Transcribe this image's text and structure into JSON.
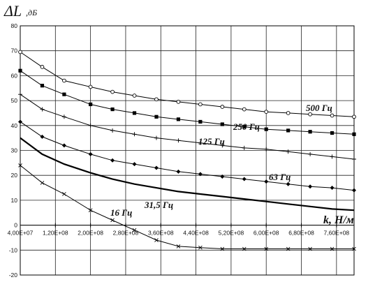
{
  "chart_data": {
    "type": "line",
    "title_main": "ΔL",
    "title_sub": ",дБ",
    "xlabel": "k, Н/м",
    "xlim": [
      40000000,
      800000000
    ],
    "ylim": [
      -20,
      80
    ],
    "x_ticks": [
      40000000,
      120000000,
      200000000,
      280000000,
      360000000,
      440000000,
      520000000,
      600000000,
      680000000,
      760000000
    ],
    "x_tick_labels": [
      "4,00E+07",
      "1,20E+08",
      "2,00E+08",
      "2,80E+08",
      "3,60E+08",
      "4,40E+08",
      "5,20E+08",
      "6,00E+08",
      "6,80E+08",
      "7,60E+08"
    ],
    "y_ticks": [
      -20,
      -10,
      0,
      10,
      20,
      30,
      40,
      50,
      60,
      70,
      80
    ],
    "y_tick_labels": [
      "-20",
      "-10",
      "0",
      "10",
      "20",
      "30",
      "40",
      "50",
      "60",
      "70",
      "80"
    ],
    "grid": true,
    "series": [
      {
        "name": "500 Гц",
        "marker": "circle-open",
        "x": [
          40000000,
          90000000,
          140000000,
          200000000,
          250000000,
          300000000,
          350000000,
          400000000,
          450000000,
          500000000,
          550000000,
          600000000,
          650000000,
          700000000,
          750000000,
          800000000
        ],
        "y": [
          69.5,
          63.5,
          58,
          55.5,
          53.5,
          52,
          50.5,
          49.5,
          48.5,
          47.5,
          46.5,
          45.5,
          45,
          44.5,
          44,
          43.5
        ]
      },
      {
        "name": "250 Гц",
        "marker": "square-filled",
        "x": [
          40000000,
          90000000,
          140000000,
          200000000,
          250000000,
          300000000,
          350000000,
          400000000,
          450000000,
          500000000,
          550000000,
          600000000,
          650000000,
          700000000,
          750000000,
          800000000
        ],
        "y": [
          62,
          56,
          52.5,
          48.5,
          46.5,
          45,
          43.5,
          42.5,
          41.5,
          40.5,
          39.5,
          38.5,
          38,
          37.5,
          37,
          36.5
        ]
      },
      {
        "name": "125 Гц",
        "marker": "plus",
        "x": [
          40000000,
          90000000,
          140000000,
          200000000,
          250000000,
          300000000,
          350000000,
          400000000,
          450000000,
          500000000,
          550000000,
          600000000,
          650000000,
          700000000,
          750000000,
          800000000
        ],
        "y": [
          52.5,
          46.5,
          43.5,
          40,
          38,
          36.5,
          35,
          34,
          33,
          32,
          31,
          30.5,
          29.5,
          28.5,
          27.5,
          26.5
        ]
      },
      {
        "name": "63 Гц",
        "marker": "diamond-filled",
        "x": [
          40000000,
          90000000,
          140000000,
          200000000,
          250000000,
          300000000,
          350000000,
          400000000,
          450000000,
          500000000,
          550000000,
          600000000,
          650000000,
          700000000,
          750000000,
          800000000
        ],
        "y": [
          41.5,
          35.5,
          32,
          28.5,
          26,
          24.5,
          23,
          21.5,
          20.5,
          19.5,
          18.5,
          17.5,
          16.5,
          15.5,
          15,
          14
        ]
      },
      {
        "name": "31,5 Гц",
        "marker": "none",
        "x": [
          40000000,
          90000000,
          140000000,
          200000000,
          250000000,
          300000000,
          350000000,
          400000000,
          450000000,
          500000000,
          550000000,
          600000000,
          650000000,
          700000000,
          750000000,
          800000000
        ],
        "y": [
          35,
          28.5,
          24.5,
          21,
          18.5,
          16.5,
          15,
          13.5,
          12.5,
          11.5,
          10.5,
          9.5,
          8.5,
          7.5,
          6.5,
          6
        ]
      },
      {
        "name": "16 Гц",
        "marker": "x",
        "x": [
          40000000,
          90000000,
          140000000,
          200000000,
          250000000,
          300000000,
          350000000,
          400000000,
          450000000,
          500000000,
          550000000,
          600000000,
          650000000,
          700000000,
          750000000,
          800000000
        ],
        "y": [
          24,
          17,
          12.5,
          6,
          2,
          -2,
          -6,
          -8.5,
          -9,
          -9.5,
          -9.5,
          -9.5,
          -9.5,
          -9.5,
          -9.5,
          -9.5
        ]
      }
    ]
  }
}
